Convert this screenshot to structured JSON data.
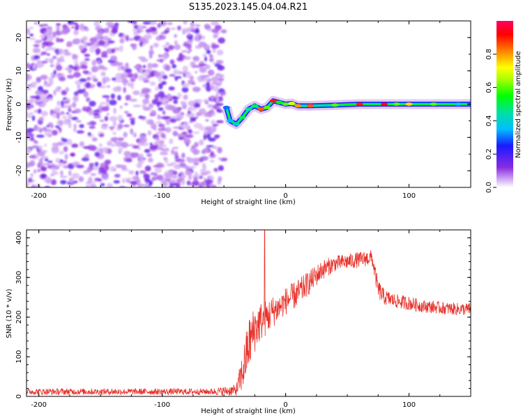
{
  "title": "S135.2023.145.04.04.R21",
  "chart_data": [
    {
      "type": "heatmap",
      "xlabel": "Height of straight line (km)",
      "ylabel": "Frequency (Hz)",
      "xlim": [
        -210,
        150
      ],
      "ylim": [
        -25,
        25
      ],
      "x_ticks": [
        -200,
        -100,
        0,
        100
      ],
      "x_tick_labels": [
        "-200",
        "-100",
        "0",
        "100"
      ],
      "y_ticks": [
        -20,
        -10,
        0,
        10,
        20
      ],
      "y_tick_labels": [
        "-20",
        "-10",
        "0",
        "10",
        "20"
      ],
      "noise_region_x": [
        -210,
        -50
      ],
      "transition_region_x": [
        -50,
        10
      ],
      "signal_track": [
        {
          "x": -48,
          "y": -1,
          "a": 0.3
        },
        {
          "x": -45,
          "y": -5,
          "a": 0.35
        },
        {
          "x": -40,
          "y": -6,
          "a": 0.4
        },
        {
          "x": -35,
          "y": -4,
          "a": 0.5
        },
        {
          "x": -30,
          "y": -1.5,
          "a": 0.45
        },
        {
          "x": -25,
          "y": -0.5,
          "a": 0.5
        },
        {
          "x": -20,
          "y": -1.5,
          "a": 0.85
        },
        {
          "x": -15,
          "y": -1,
          "a": 0.6
        },
        {
          "x": -10,
          "y": 1,
          "a": 0.9
        },
        {
          "x": -5,
          "y": 0.5,
          "a": 0.55
        },
        {
          "x": 0,
          "y": 0,
          "a": 0.6
        },
        {
          "x": 5,
          "y": 0.2,
          "a": 0.7
        },
        {
          "x": 10,
          "y": -0.5,
          "a": 0.8
        },
        {
          "x": 20,
          "y": -0.5,
          "a": 0.85
        },
        {
          "x": 40,
          "y": -0.3,
          "a": 0.6
        },
        {
          "x": 60,
          "y": 0,
          "a": 0.9
        },
        {
          "x": 80,
          "y": 0,
          "a": 0.95
        },
        {
          "x": 90,
          "y": 0,
          "a": 0.6
        },
        {
          "x": 100,
          "y": 0,
          "a": 0.75
        },
        {
          "x": 120,
          "y": 0,
          "a": 0.6
        },
        {
          "x": 140,
          "y": 0,
          "a": 0.4
        },
        {
          "x": 150,
          "y": 0,
          "a": 0.3
        }
      ],
      "colorbar": {
        "label": "Normalized spectral amplitude",
        "range": [
          0,
          1
        ],
        "ticks": [
          0.0,
          0.2,
          0.4,
          0.6,
          0.8
        ],
        "tick_labels": [
          "0.0",
          "0.2",
          "0.4",
          "0.6",
          "0.8"
        ]
      }
    },
    {
      "type": "line",
      "xlabel": "Height of straight line (km)",
      "ylabel": "SNR (10 * v/v)",
      "xlim": [
        -210,
        150
      ],
      "ylim": [
        0,
        420
      ],
      "x_ticks": [
        -200,
        -100,
        0,
        100
      ],
      "x_tick_labels": [
        "-200",
        "-100",
        "0",
        "100"
      ],
      "y_ticks": [
        0,
        100,
        200,
        300,
        400
      ],
      "y_tick_labels": [
        "0",
        "100",
        "200",
        "300",
        "400"
      ],
      "series": [
        {
          "name": "SNR",
          "color": "#e8312a",
          "x": [
            -210,
            -150,
            -100,
            -60,
            -40,
            -35,
            -30,
            -25,
            -20,
            -15,
            -10,
            -5,
            0,
            10,
            20,
            30,
            40,
            50,
            60,
            70,
            75,
            80,
            90,
            100,
            110,
            120,
            130,
            140,
            150
          ],
          "y": [
            12,
            12,
            12,
            12,
            15,
            60,
            130,
            170,
            190,
            200,
            215,
            225,
            240,
            260,
            290,
            320,
            335,
            340,
            345,
            350,
            270,
            250,
            240,
            235,
            228,
            225,
            222,
            220,
            220
          ],
          "noise": [
            8,
            8,
            8,
            8,
            15,
            50,
            70,
            60,
            50,
            45,
            40,
            35,
            35,
            35,
            30,
            25,
            20,
            20,
            20,
            20,
            25,
            20,
            18,
            18,
            16,
            16,
            16,
            16,
            16
          ]
        }
      ],
      "spike": {
        "x": -17,
        "y": 420
      }
    }
  ]
}
